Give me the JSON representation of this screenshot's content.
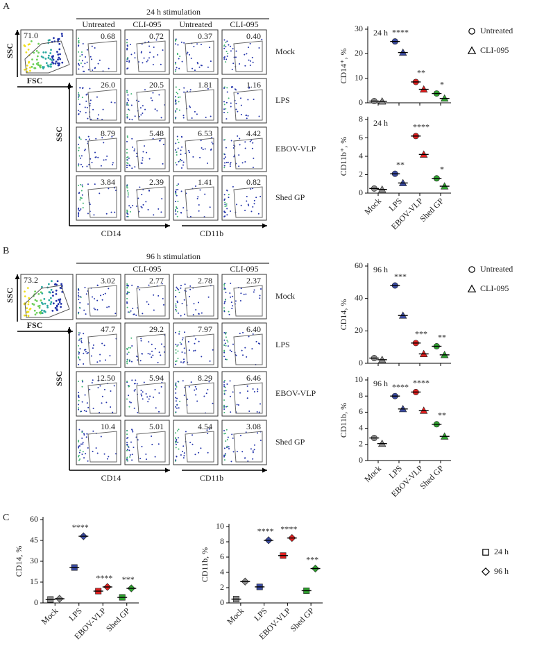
{
  "figure": {
    "panels": [
      {
        "label": "A",
        "header": "24 h stimulation",
        "columns": [
          "Untreated",
          "CLI-095",
          "Untreated",
          "CLI-095"
        ],
        "gate": {
          "value": "71.0",
          "y_label": "SSC",
          "x_label": "FSC"
        },
        "rows": [
          "Mock",
          "LPS",
          "EBOV-VLP",
          "Shed GP"
        ],
        "percentages": [
          [
            "0.68",
            "0.72",
            "0.37",
            "0.40"
          ],
          [
            "26.0",
            "20.5",
            "1.81",
            "1.16"
          ],
          [
            "8.79",
            "5.48",
            "6.53",
            "4.42"
          ],
          [
            "3.84",
            "2.39",
            "1.41",
            "0.82"
          ]
        ],
        "y_label": "SSC",
        "x_labels": [
          "CD14",
          "CD11b"
        ]
      },
      {
        "label": "B",
        "header": "96 h stimulation",
        "columns": [
          null,
          "CLI-095",
          null,
          "CLI-095"
        ],
        "gate": {
          "value": "73.2",
          "y_label": "SSC",
          "x_label": "FSC"
        },
        "rows": [
          "Mock",
          "LPS",
          "EBOV-VLP",
          "Shed GP"
        ],
        "percentages": [
          [
            "3.02",
            "2.77",
            "2.78",
            "2.37"
          ],
          [
            "47.7",
            "29.2",
            "7.97",
            "6.40"
          ],
          [
            "12.50",
            "5.94",
            "8.29",
            "6.46"
          ],
          [
            "10.4",
            "5.01",
            "4.54",
            "3.08"
          ]
        ],
        "y_label": "SSC",
        "x_labels": [
          "CD14",
          "CD11b"
        ]
      },
      {
        "label": "C"
      }
    ]
  },
  "chart_data": [
    {
      "type": "dot",
      "time_label": "24 h",
      "y_label": "CD14⁺, %",
      "categories": [
        null,
        null,
        null,
        null
      ],
      "category_colors": [
        "#8a8a8a",
        "#3a4aa0",
        "#e02020",
        "#2fa12f"
      ],
      "ylim": [
        0,
        30
      ],
      "yticks": [
        0,
        10,
        20,
        30
      ],
      "legend": "right",
      "series": [
        {
          "name": "Untreated",
          "marker": "circle",
          "values": [
            0.7,
            25,
            8.5,
            3.8
          ]
        },
        {
          "name": "CLI-095",
          "marker": "triangle",
          "values": [
            0.6,
            20.5,
            5.5,
            1.8
          ]
        }
      ],
      "annotations": [
        null,
        "****",
        "**",
        "*"
      ]
    },
    {
      "type": "dot",
      "time_label": "24 h",
      "y_label": "CD11b⁺, %",
      "categories": [
        "Mock",
        "LPS",
        "EBOV-VLP",
        "Shed GP"
      ],
      "category_colors": [
        "#8a8a8a",
        "#3a4aa0",
        "#e02020",
        "#2fa12f"
      ],
      "ylim": [
        0,
        8
      ],
      "yticks": [
        0,
        2,
        4,
        6,
        8
      ],
      "series": [
        {
          "name": "Untreated",
          "marker": "circle",
          "values": [
            0.5,
            2.1,
            6.2,
            1.6
          ]
        },
        {
          "name": "CLI-095",
          "marker": "triangle",
          "values": [
            0.4,
            1.1,
            4.2,
            0.75
          ]
        }
      ],
      "annotations": [
        null,
        "**",
        "****",
        "*"
      ]
    },
    {
      "type": "dot",
      "time_label": "96 h",
      "y_label": "CD14, %",
      "categories": [
        null,
        null,
        null,
        null
      ],
      "category_colors": [
        "#8a8a8a",
        "#3a4aa0",
        "#e02020",
        "#2fa12f"
      ],
      "ylim": [
        0,
        60
      ],
      "yticks": [
        0,
        20,
        40,
        60
      ],
      "legend": "right",
      "series": [
        {
          "name": "Untreated",
          "marker": "circle",
          "values": [
            3.2,
            48,
            12.5,
            10.5
          ]
        },
        {
          "name": "CLI-095",
          "marker": "triangle",
          "values": [
            2.2,
            29.5,
            5.8,
            5.2
          ]
        }
      ],
      "annotations": [
        null,
        "***",
        "***",
        "**"
      ]
    },
    {
      "type": "dot",
      "time_label": "96 h",
      "y_label": "CD11b, %",
      "categories": [
        "Mock",
        "LPS",
        "EBOV-VLP",
        "Shed GP"
      ],
      "category_colors": [
        "#8a8a8a",
        "#3a4aa0",
        "#e02020",
        "#2fa12f"
      ],
      "ylim": [
        0,
        10
      ],
      "yticks": [
        0,
        2,
        4,
        6,
        8,
        10
      ],
      "series": [
        {
          "name": "Untreated",
          "marker": "circle",
          "values": [
            2.8,
            8.0,
            8.5,
            4.5
          ]
        },
        {
          "name": "CLI-095",
          "marker": "triangle",
          "values": [
            2.1,
            6.4,
            6.2,
            3.0
          ]
        }
      ],
      "annotations": [
        null,
        "****",
        "****",
        "**"
      ]
    },
    {
      "type": "dot",
      "y_label": "CD14, %",
      "categories": [
        "Mock",
        "LPS",
        "EBOV-VLP",
        "Shed GP"
      ],
      "category_colors": [
        "#8a8a8a",
        "#3a4aa0",
        "#e02020",
        "#2fa12f"
      ],
      "ylim": [
        0,
        60
      ],
      "yticks": [
        0,
        15,
        30,
        45,
        60
      ],
      "series": [
        {
          "name": "24 h",
          "marker": "square",
          "values": [
            2.5,
            25.5,
            8.5,
            4.0
          ]
        },
        {
          "name": "96 h",
          "marker": "diamond",
          "values": [
            3.0,
            48,
            11.5,
            10.5
          ]
        }
      ],
      "annotations": [
        null,
        "****",
        "****",
        "***"
      ]
    },
    {
      "type": "dot",
      "y_label": "CD11b, %",
      "categories": [
        "Mock",
        "LPS",
        "EBOV-VLP",
        "Shed GP"
      ],
      "category_colors": [
        "#8a8a8a",
        "#3a4aa0",
        "#e02020",
        "#2fa12f"
      ],
      "ylim": [
        0,
        10
      ],
      "yticks": [
        0,
        2,
        4,
        6,
        8,
        10
      ],
      "legend": "right",
      "series": [
        {
          "name": "24 h",
          "marker": "square",
          "values": [
            0.5,
            2.1,
            6.2,
            1.6
          ]
        },
        {
          "name": "96 h",
          "marker": "diamond",
          "values": [
            2.8,
            8.2,
            8.5,
            4.5
          ]
        }
      ],
      "annotations": [
        null,
        "****",
        "****",
        "***"
      ]
    }
  ]
}
